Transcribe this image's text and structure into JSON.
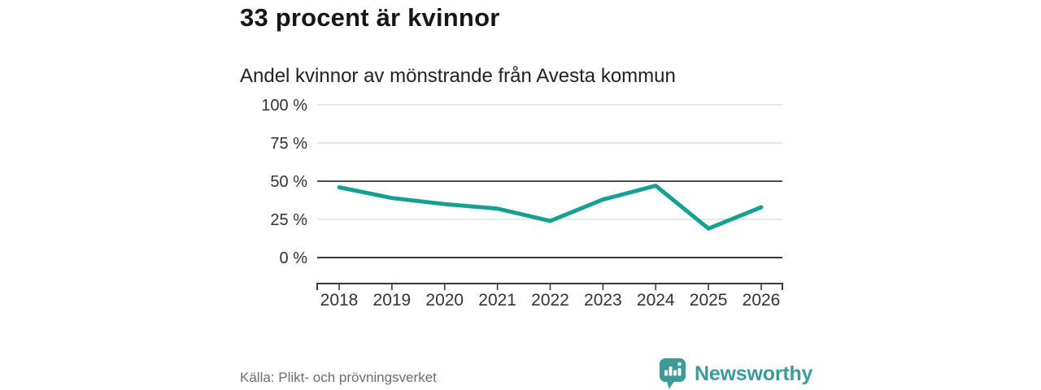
{
  "header": {
    "title": "33 procent är kvinnor",
    "subtitle": "Andel kvinnor av mönstrande från Avesta kommun"
  },
  "chart_data": {
    "type": "line",
    "x": [
      "2018",
      "2019",
      "2020",
      "2021",
      "2022",
      "2023",
      "2024",
      "2025",
      "2026"
    ],
    "series": [
      {
        "name": "Andel kvinnor av mönstrande",
        "values": [
          46,
          39,
          35,
          32,
          24,
          38,
          47,
          19,
          33
        ]
      }
    ],
    "unit": "%",
    "ylim": [
      0,
      100
    ],
    "yticks": [
      0,
      25,
      50,
      75,
      100
    ],
    "ytick_labels": [
      "0 %",
      "25 %",
      "50 %",
      "75 %",
      "100 %"
    ],
    "emphasized_gridlines": [
      0,
      50
    ],
    "grid": true,
    "legend": "none",
    "title": "33 procent är kvinnor",
    "subtitle": "Andel kvinnor av mönstrande från Avesta kommun",
    "xlabel": "",
    "ylabel": ""
  },
  "footer": {
    "source": "Källa: Plikt- och prövningsverket",
    "brand": "Newsworthy"
  },
  "colors": {
    "accent": "#16a091",
    "brand": "#3b9b98",
    "grid_light": "#e0e0e0",
    "grid_mid": "#4d4d4d",
    "grid_dark": "#3a3a3a",
    "axis_text": "#333333",
    "title": "#161616",
    "subtitle": "#222222",
    "source": "#6d6d74"
  }
}
